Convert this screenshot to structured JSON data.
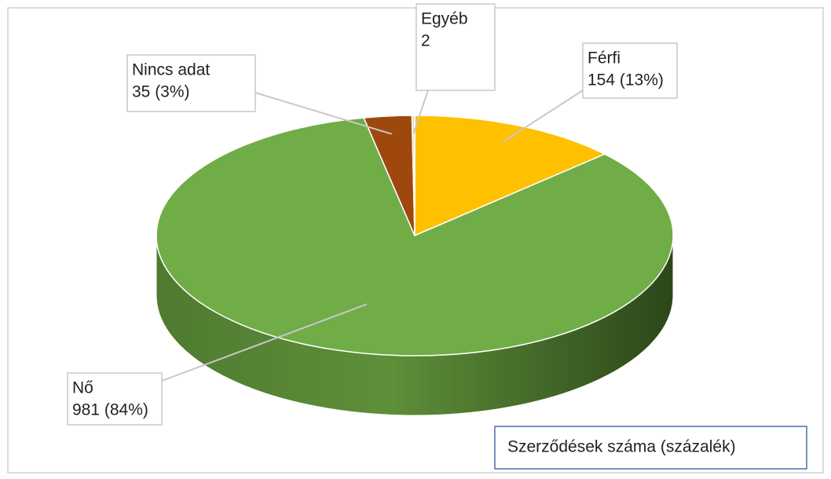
{
  "chart_data": {
    "type": "pie",
    "categories": [
      "Férfi",
      "Nő",
      "Nincs adat",
      "Egyéb"
    ],
    "values": [
      154,
      981,
      35,
      2
    ],
    "value_labels": [
      "154 (13%)",
      "981 (84%)",
      "35 (3%)",
      "2"
    ],
    "colors": [
      "#ffc000",
      "#70ad47",
      "#9e480e",
      "#d9d9d9"
    ],
    "annotation": "Szerződések száma (százalék)"
  }
}
